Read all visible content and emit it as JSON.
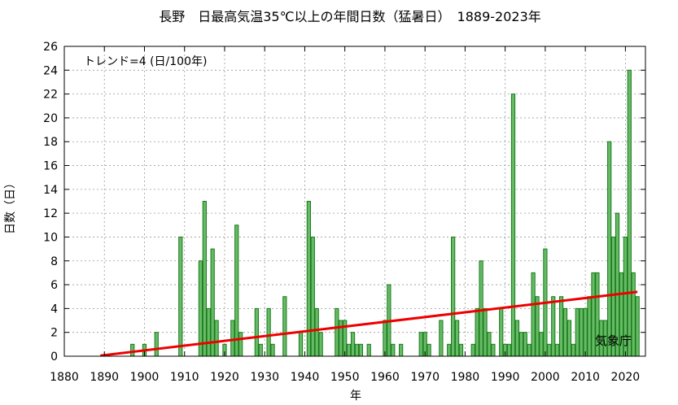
{
  "chart_data": {
    "type": "bar",
    "title": "長野　日最高気温35℃以上の年間日数（猛暑日）　1889-2023年",
    "xlabel": "年",
    "ylabel": "日数（日）",
    "xlim": [
      1880,
      2025
    ],
    "ylim": [
      0,
      26
    ],
    "x_ticks": [
      1880,
      1890,
      1900,
      1910,
      1920,
      1930,
      1940,
      1950,
      1960,
      1970,
      1980,
      1990,
      2000,
      2010,
      2020
    ],
    "y_ticks": [
      0,
      2,
      4,
      6,
      8,
      10,
      12,
      14,
      16,
      18,
      20,
      22,
      24,
      26
    ],
    "grid": true,
    "trend_label": "トレンド=4 (日/100年)",
    "source_label": "気象庁",
    "colors": {
      "bar_fill": "#66bb66",
      "bar_stroke": "#1a7a1a",
      "trend": "#ee0000",
      "grid": "#999999"
    },
    "series": [
      {
        "kind": "bar",
        "x": [
          1897,
          1900,
          1903,
          1909,
          1914,
          1915,
          1916,
          1917,
          1918,
          1920,
          1922,
          1923,
          1924,
          1928,
          1929,
          1931,
          1932,
          1935,
          1939,
          1941,
          1942,
          1943,
          1944,
          1948,
          1949,
          1950,
          1951,
          1952,
          1953,
          1954,
          1956,
          1960,
          1961,
          1962,
          1964,
          1969,
          1970,
          1971,
          1974,
          1976,
          1977,
          1978,
          1979,
          1982,
          1983,
          1984,
          1985,
          1986,
          1987,
          1989,
          1990,
          1991,
          1992,
          1993,
          1994,
          1995,
          1996,
          1997,
          1998,
          1999,
          2000,
          2001,
          2002,
          2003,
          2004,
          2005,
          2006,
          2007,
          2008,
          2009,
          2010,
          2011,
          2012,
          2013,
          2014,
          2015,
          2016,
          2017,
          2018,
          2019,
          2020,
          2021,
          2022,
          2023
        ],
        "values": [
          1,
          1,
          2,
          10,
          8,
          13,
          4,
          9,
          3,
          1,
          3,
          11,
          2,
          4,
          1,
          4,
          1,
          5,
          2,
          13,
          10,
          4,
          2,
          4,
          3,
          3,
          1,
          2,
          1,
          1,
          1,
          3,
          6,
          1,
          1,
          2,
          2,
          1,
          3,
          1,
          10,
          3,
          1,
          1,
          4,
          8,
          4,
          2,
          1,
          4,
          1,
          1,
          22,
          3,
          2,
          2,
          1,
          7,
          5,
          2,
          9,
          1,
          5,
          1,
          5,
          4,
          3,
          1,
          4,
          4,
          4,
          5,
          7,
          7,
          3,
          3,
          18,
          10,
          12,
          7,
          10,
          24,
          7,
          5
        ]
      },
      {
        "kind": "line",
        "name": "トレンド",
        "x": [
          1889,
          2023
        ],
        "values": [
          0.05,
          5.4
        ]
      }
    ]
  }
}
